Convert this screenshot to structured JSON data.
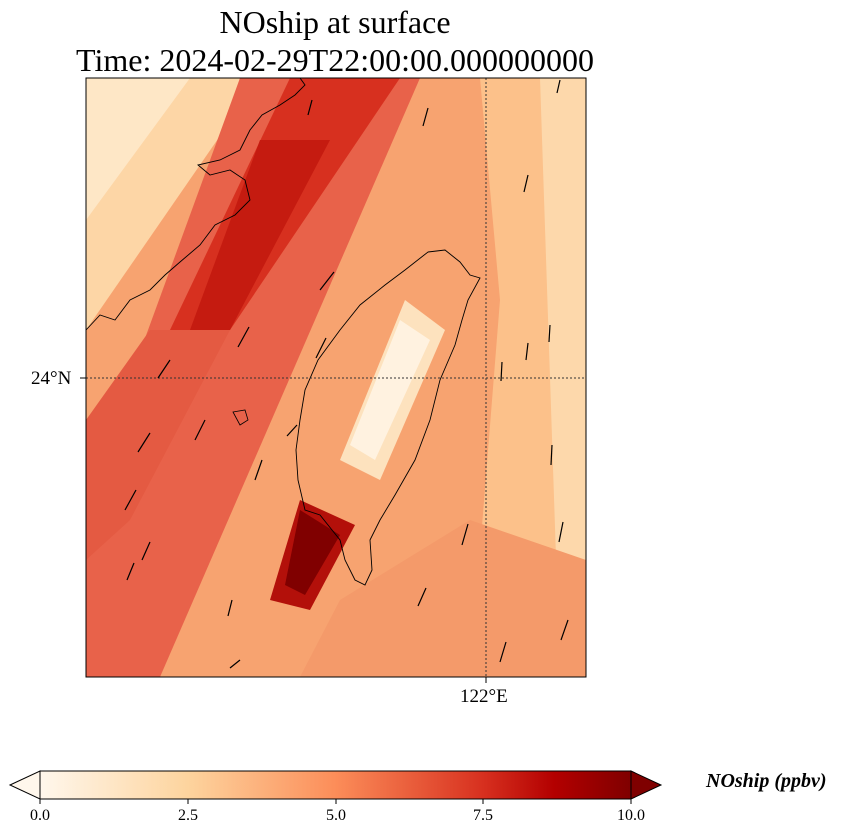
{
  "title": {
    "line1": "NOship at surface",
    "line2": "Time: 2024-02-29T22:00:00.000000000"
  },
  "axes": {
    "lat_tick_label": "24°N",
    "lon_tick_label": "122°E"
  },
  "colorbar": {
    "label": "NOship (ppbv)",
    "ticks": [
      "0.0",
      "2.5",
      "5.0",
      "7.5",
      "10.0"
    ],
    "range": [
      0,
      10
    ],
    "extend": "both",
    "colormap": "OrRd",
    "colors": [
      "#fff7ec",
      "#fdd49e",
      "#fc8d59",
      "#d7301f",
      "#7f0000"
    ]
  },
  "map": {
    "projection": "PlateCarree",
    "gridlines": "dotted",
    "coastline_color": "#000000",
    "wind_vectors": true
  }
}
